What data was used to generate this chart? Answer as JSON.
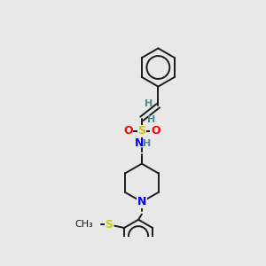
{
  "background_color": "#e8e8e8",
  "bond_color": "#1a1a1a",
  "fig_size": [
    3.0,
    3.0
  ],
  "dpi": 100,
  "colors": {
    "S": "#cccc00",
    "O": "#ff0000",
    "N": "#0000ff",
    "H": "#4a8a8a",
    "C": "#1a1a1a"
  }
}
